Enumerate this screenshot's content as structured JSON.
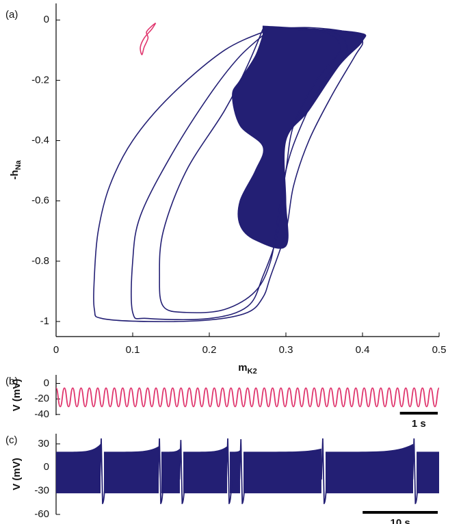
{
  "chart_data": [
    {
      "type": "phase",
      "panel_label": "(a)",
      "xlabel": {
        "text": "m",
        "sub": "K2"
      },
      "ylabel": {
        "text": "-h",
        "sub": "Na"
      },
      "xlim": [
        0,
        0.5
      ],
      "ylim": [
        -1.05,
        0.055
      ],
      "xticks": [
        0,
        0.1,
        0.2,
        0.3,
        0.4,
        0.5
      ],
      "yticks": [
        0,
        -0.2,
        -0.4,
        -0.6,
        -0.8,
        -1
      ],
      "series": [
        {
          "color": "#e0356d",
          "fill": false,
          "x": [
            0.13,
            0.125,
            0.115,
            0.11,
            0.112,
            0.115,
            0.12,
            0.118,
            0.125,
            0.13
          ],
          "values": [
            -0.01,
            -0.03,
            -0.06,
            -0.09,
            -0.115,
            -0.09,
            -0.06,
            -0.04,
            -0.02,
            -0.01
          ]
        },
        {
          "color": "#231f74",
          "fill": true,
          "x": [
            0.27,
            0.39,
            0.4,
            0.37,
            0.33,
            0.3,
            0.3,
            0.3,
            0.26,
            0.24,
            0.24,
            0.26,
            0.27,
            0.24,
            0.23,
            0.24,
            0.26,
            0.27
          ],
          "values": [
            -0.02,
            -0.04,
            -0.07,
            -0.15,
            -0.3,
            -0.4,
            -0.6,
            -0.75,
            -0.73,
            -0.68,
            -0.6,
            -0.5,
            -0.42,
            -0.35,
            -0.25,
            -0.2,
            -0.12,
            -0.05
          ]
        },
        {
          "color": "#231f74",
          "fill": false,
          "x": [
            0.28,
            0.22,
            0.15,
            0.1,
            0.07,
            0.055,
            0.05,
            0.05,
            0.06,
            0.12,
            0.2,
            0.25,
            0.27,
            0.28,
            0.3,
            0.31,
            0.33,
            0.36,
            0.39,
            0.4,
            0.38,
            0.33,
            0.28
          ],
          "values": [
            -0.03,
            -0.1,
            -0.25,
            -0.4,
            -0.55,
            -0.7,
            -0.85,
            -0.96,
            -0.99,
            -1.0,
            -0.995,
            -0.97,
            -0.92,
            -0.85,
            -0.7,
            -0.55,
            -0.4,
            -0.25,
            -0.12,
            -0.07,
            -0.04,
            -0.025,
            -0.03
          ]
        },
        {
          "color": "#231f74",
          "fill": false,
          "x": [
            0.28,
            0.24,
            0.2,
            0.15,
            0.11,
            0.1,
            0.1,
            0.12,
            0.2,
            0.25,
            0.27,
            0.29,
            0.3,
            0.32,
            0.35,
            0.38,
            0.36,
            0.3,
            0.28
          ],
          "values": [
            -0.03,
            -0.12,
            -0.25,
            -0.45,
            -0.65,
            -0.8,
            -0.97,
            -0.99,
            -0.99,
            -0.95,
            -0.85,
            -0.7,
            -0.5,
            -0.35,
            -0.2,
            -0.1,
            -0.04,
            -0.03,
            -0.03
          ]
        },
        {
          "color": "#231f74",
          "fill": false,
          "x": [
            0.27,
            0.25,
            0.22,
            0.17,
            0.14,
            0.135,
            0.14,
            0.17,
            0.22,
            0.26,
            0.28,
            0.29,
            0.3,
            0.31,
            0.34,
            0.37,
            0.35,
            0.27
          ],
          "values": [
            -0.03,
            -0.15,
            -0.3,
            -0.5,
            -0.7,
            -0.85,
            -0.95,
            -0.97,
            -0.96,
            -0.9,
            -0.8,
            -0.65,
            -0.5,
            -0.35,
            -0.2,
            -0.1,
            -0.04,
            -0.03
          ]
        }
      ]
    },
    {
      "type": "wave",
      "panel_label": "(b)",
      "ylabel": "V (mV)",
      "color": "#e0356d",
      "xlim": [
        0,
        10.12
      ],
      "ylim": [
        -41,
        11
      ],
      "yticks": [
        0,
        -20,
        -40
      ],
      "scalebar": {
        "length": 1,
        "label": "1 s"
      },
      "x": [
        0,
        0.11,
        0.22,
        0.33,
        0.44,
        0.55,
        0.66,
        0.77,
        0.88,
        0.99,
        1.1,
        1.21,
        1.32,
        1.43,
        1.54,
        1.65,
        1.76,
        1.87,
        1.98,
        2.09,
        2.2,
        2.31,
        2.42,
        2.53,
        2.64,
        2.75,
        2.86,
        2.97,
        3.08,
        3.19,
        3.3,
        3.41,
        3.52,
        3.63,
        3.74,
        3.85,
        3.96,
        4.07,
        4.18,
        4.29,
        4.4,
        4.51,
        4.62,
        4.73,
        4.84,
        4.95,
        5.06,
        5.17,
        5.28,
        5.39,
        5.5,
        5.61,
        5.72,
        5.83,
        5.94,
        6.05,
        6.16,
        6.27,
        6.38,
        6.49,
        6.6,
        6.71,
        6.82,
        6.93,
        7.04,
        7.15,
        7.26,
        7.37,
        7.48,
        7.59,
        7.7,
        7.81,
        7.92,
        8.03,
        8.14,
        8.25,
        8.36,
        8.47,
        8.58,
        8.69,
        8.8,
        8.91,
        9.02,
        9.13,
        9.24,
        9.35,
        9.46,
        9.57,
        9.68,
        9.79,
        9.9,
        10.01,
        10.12
      ],
      "values": [
        -6,
        -30,
        -6,
        -30,
        -6,
        -30,
        -6,
        -30,
        -6,
        -30,
        -6,
        -30,
        -6,
        -30,
        -6,
        -30,
        -6,
        -30,
        -6,
        -30,
        -6,
        -30,
        -6,
        -30,
        -6,
        -30,
        -6,
        -30,
        -6,
        -30,
        -6,
        -30,
        -6,
        -30,
        -6,
        -30,
        -6,
        -30,
        -6,
        -30,
        -6,
        -30,
        -6,
        -30,
        -6,
        -30,
        -6,
        -30,
        -6,
        -30,
        -6,
        -30,
        -6,
        -30,
        -6,
        -30,
        -6,
        -30,
        -6,
        -30,
        -6,
        -30,
        -6,
        -30,
        -6,
        -30,
        -6,
        -30,
        -6,
        -30,
        -6,
        -30,
        -6,
        -30,
        -6,
        -30,
        -6,
        -30,
        -6,
        -30,
        -6,
        -30,
        -6,
        -30,
        -6,
        -30,
        -6,
        -30,
        -6,
        -30,
        -6,
        -30,
        -6
      ]
    },
    {
      "type": "burst",
      "panel_label": "(c)",
      "ylabel": "V (mV)",
      "color": "#231f74",
      "xlim": [
        0,
        51
      ],
      "ylim": [
        -60,
        43
      ],
      "yticks": [
        30,
        0,
        -30,
        -60
      ],
      "scalebar": {
        "length": 10,
        "label": "10 s"
      },
      "bursts": [
        {
          "start": 0,
          "end": 5.92,
          "top_start": 20,
          "top_end": 30,
          "bottom": -33
        },
        {
          "start": 6.37,
          "end": 13.66,
          "top_start": 20,
          "top_end": 27,
          "bottom": -33
        },
        {
          "start": 14.02,
          "end": 16.48,
          "top_start": 20,
          "top_end": 24,
          "bottom": -33
        },
        {
          "start": 16.94,
          "end": 22.77,
          "top_start": 20,
          "top_end": 27,
          "bottom": -33
        },
        {
          "start": 23.13,
          "end": 24.5,
          "top_start": 20,
          "top_end": 22,
          "bottom": -33
        },
        {
          "start": 24.95,
          "end": 35.33,
          "top_start": 20,
          "top_end": 24,
          "bottom": -33
        },
        {
          "start": 35.88,
          "end": 47.54,
          "top_start": 20,
          "top_end": 30,
          "bottom": -33
        },
        {
          "start": 48.0,
          "end": 51,
          "top_start": 20,
          "top_end": 20,
          "bottom": -33
        }
      ],
      "spikes": [
        {
          "x": 6.1,
          "max": 37,
          "min": -46
        },
        {
          "x": 13.85,
          "max": 37,
          "min": -46
        },
        {
          "x": 16.7,
          "max": 35,
          "min": -46
        },
        {
          "x": 22.95,
          "max": 37,
          "min": -46
        },
        {
          "x": 24.7,
          "max": 36,
          "min": -46
        },
        {
          "x": 35.6,
          "max": 37,
          "min": -46
        },
        {
          "x": 47.75,
          "max": 37,
          "min": -46
        }
      ]
    }
  ]
}
